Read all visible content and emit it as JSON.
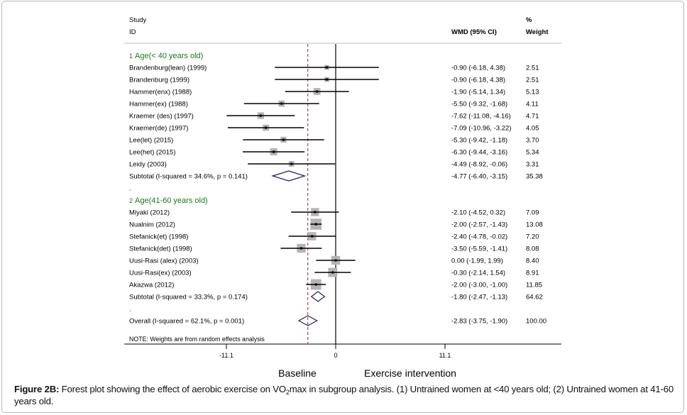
{
  "chart_data": {
    "type": "forest",
    "title": "",
    "headers": {
      "study_line1": "Study",
      "study_line2": "ID",
      "effect": "WMD (95% CI)",
      "weight_line1": "%",
      "weight_line2": "Weight"
    },
    "xaxis": {
      "ticks": [
        -11.1,
        0,
        11.1
      ],
      "tick_labels": [
        "-11.1",
        "0",
        "11.1"
      ],
      "range": [
        -11.1,
        11.1
      ],
      "null_line": 0,
      "overall_line": -2.83,
      "left_label": "Baseline",
      "right_label": "Exercise intervention"
    },
    "groups": [
      {
        "number": "1",
        "label": "Age(< 40 years old)",
        "studies": [
          {
            "name": "Brandenburg(lean) (1999)",
            "es": -0.9,
            "lo": -6.18,
            "hi": 4.38,
            "es_text": "-0.90 (-6.18, 4.38)",
            "weight": "2.51"
          },
          {
            "name": "Brandenburg (1999)",
            "es": -0.9,
            "lo": -6.18,
            "hi": 4.38,
            "es_text": "-0.90 (-6.18, 4.38)",
            "weight": "2.51"
          },
          {
            "name": "Hammer(enx) (1988)",
            "es": -1.9,
            "lo": -5.14,
            "hi": 1.34,
            "es_text": "-1.90 (-5.14, 1.34)",
            "weight": "5.13"
          },
          {
            "name": "Hammer(ex) (1988)",
            "es": -5.5,
            "lo": -9.32,
            "hi": -1.68,
            "es_text": "-5.50 (-9.32, -1.68)",
            "weight": "4.11"
          },
          {
            "name": "Kraemer (des) (1997)",
            "es": -7.62,
            "lo": -11.08,
            "hi": -4.16,
            "es_text": "-7.62 (-11.08, -4.16)",
            "weight": "4.71"
          },
          {
            "name": "Kraemer(de) (1997)",
            "es": -7.09,
            "lo": -10.96,
            "hi": -3.22,
            "es_text": "-7.09 (-10.96, -3.22)",
            "weight": "4.05"
          },
          {
            "name": "Lee(let) (2015)",
            "es": -5.3,
            "lo": -9.42,
            "hi": -1.18,
            "es_text": "-5.30 (-9.42, -1.18)",
            "weight": "3.70"
          },
          {
            "name": "Lee(het) (2015)",
            "es": -6.3,
            "lo": -9.44,
            "hi": -3.16,
            "es_text": "-6.30 (-9.44, -3.16)",
            "weight": "5.34"
          },
          {
            "name": "Leidy (2003)",
            "es": -4.49,
            "lo": -8.92,
            "hi": -0.06,
            "es_text": "-4.49 (-8.92, -0.06)",
            "weight": "3.31"
          }
        ],
        "subtotal": {
          "label": "Subtotal  (I-squared = 34.6%, p = 0.141)",
          "es": -4.77,
          "lo": -6.4,
          "hi": -3.15,
          "es_text": "-4.77 (-6.40, -3.15)",
          "weight": "35.38"
        }
      },
      {
        "number": "2",
        "label": "Age(41-60 years old)",
        "studies": [
          {
            "name": "Miyaki  (2012)",
            "es": -2.1,
            "lo": -4.52,
            "hi": 0.32,
            "es_text": "-2.10 (-4.52, 0.32)",
            "weight": "7.09"
          },
          {
            "name": "Nualnim (2012)",
            "es": -2.0,
            "lo": -2.57,
            "hi": -1.43,
            "es_text": "-2.00 (-2.57, -1.43)",
            "weight": "13.08"
          },
          {
            "name": "Stefanick(et) (1998)",
            "es": -2.4,
            "lo": -4.78,
            "hi": -0.02,
            "es_text": "-2.40 (-4.78, -0.02)",
            "weight": "7.20"
          },
          {
            "name": "Stefanick(det) (1998)",
            "es": -3.5,
            "lo": -5.59,
            "hi": -1.41,
            "es_text": "-3.50 (-5.59, -1.41)",
            "weight": "8.08"
          },
          {
            "name": "Uusi-Rasi (alex) (2003)",
            "es": 0.0,
            "lo": -1.99,
            "hi": 1.99,
            "es_text": "0.00 (-1.99, 1.99)",
            "weight": "8.40"
          },
          {
            "name": "Uusi-Rasi(ex) (2003)",
            "es": -0.3,
            "lo": -2.14,
            "hi": 1.54,
            "es_text": "-0.30 (-2.14, 1.54)",
            "weight": "8.91"
          },
          {
            "name": "Akazwa (2012)",
            "es": -2.0,
            "lo": -3.0,
            "hi": -1.0,
            "es_text": "-2.00 (-3.00, -1.00)",
            "weight": "11.85"
          }
        ],
        "subtotal": {
          "label": "Subtotal  (I-squared = 33.3%, p = 0.174)",
          "es": -1.8,
          "lo": -2.47,
          "hi": -1.13,
          "es_text": "-1.80 (-2.47, -1.13)",
          "weight": "64.62"
        }
      }
    ],
    "spacer": ".",
    "overall": {
      "label": "Overall  (I-squared = 62.1%, p = 0.001)",
      "es": -2.83,
      "lo": -3.75,
      "hi": -1.9,
      "es_text": "-2.83 (-3.75, -1.90)",
      "weight": "100.00"
    },
    "note": "NOTE: Weights are from random effects analysis"
  },
  "colors": {
    "group_title": "#1a7a1a",
    "diamond": "#1a1a6e",
    "null_line": "#000000",
    "overall_line": "#8b2a2a",
    "weight_box": "#b4b4b4",
    "ci_line": "#000000"
  },
  "caption": {
    "label": "Figure 2B:",
    "text_before_sub": " Forest plot showing the effect of aerobic exercise on VO",
    "sub": "2",
    "text_after_sub": "max in subgroup analysis. (1) Untrained women at <40 years old; (2) Untrained women at 41-60 years old."
  }
}
